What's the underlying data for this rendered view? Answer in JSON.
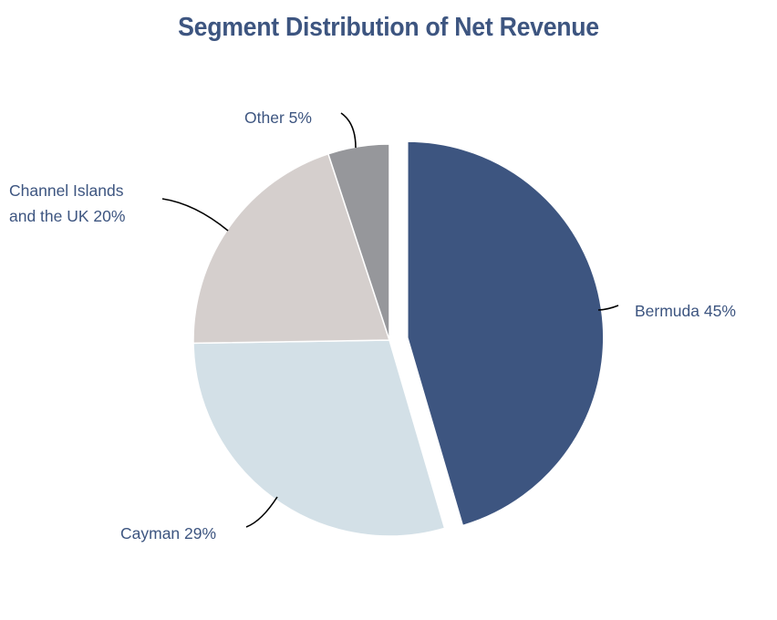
{
  "chart_data": {
    "type": "pie",
    "title": "Segment Distribution of Net Revenue",
    "start_angle_deg": 0,
    "direction": "clockwise",
    "exploded": [
      "Bermuda"
    ],
    "slices": [
      {
        "name": "Bermuda",
        "value": 45,
        "label_lines": [
          "Bermuda 45%"
        ],
        "color": "#3d5580"
      },
      {
        "name": "Cayman",
        "value": 29,
        "label_lines": [
          "Cayman 29%"
        ],
        "color": "#d3e0e7"
      },
      {
        "name": "Channel Islands and the UK",
        "value": 20,
        "label_lines": [
          "Channel Islands",
          "and the UK 20%"
        ],
        "color": "#d5cfcd"
      },
      {
        "name": "Other",
        "value": 5,
        "label_lines": [
          "Other 5%"
        ],
        "color": "#96979b"
      }
    ]
  },
  "colors": {
    "title": "#3d5580",
    "label_text": "#3d5580",
    "leader_line": "#000000",
    "background": "#ffffff"
  }
}
